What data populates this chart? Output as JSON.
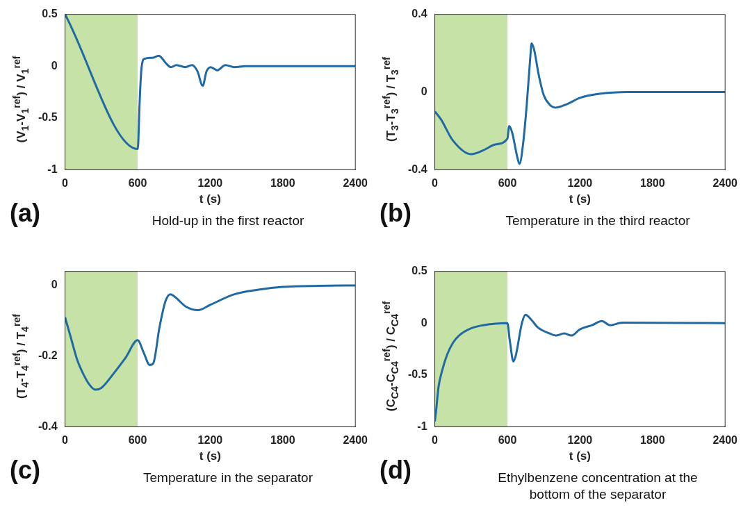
{
  "chart_data": [
    {
      "type": "line",
      "title": "(a)",
      "subtitle": "Hold-up in the first reactor",
      "xlabel": "t (s)",
      "ylabel": "(V$_{1}$-V$_{1}$$^{ref}$) / V$_{1}$$^{ref}$",
      "x": [
        0,
        600,
        605,
        615,
        630,
        645,
        655,
        700,
        720,
        775,
        840,
        875,
        920,
        995,
        1050,
        1095,
        1138,
        1170,
        1205,
        1260,
        1325,
        1400,
        1490,
        2400
      ],
      "series": [
        {
          "color": "#1f6aa5",
          "values": [
            0.5,
            -0.8,
            -0.75,
            -0.4,
            -0.05,
            0.06,
            0.07,
            0.08,
            0.08,
            0.1,
            0.02,
            -0.01,
            0.01,
            -0.01,
            0.01,
            -0.05,
            -0.19,
            -0.05,
            -0.01,
            -0.04,
            0.01,
            -0.01,
            0,
            0
          ]
        }
      ],
      "xlim": [
        0,
        2400
      ],
      "xticks": [
        0,
        600,
        1200,
        1800,
        2400
      ],
      "ylim": [
        -1,
        0.5
      ],
      "yticks": [
        -1,
        -0.5,
        0,
        0.5
      ],
      "bands": [
        {
          "axis": "x",
          "from": 0,
          "to": 600,
          "color": "#c6e2a6"
        }
      ]
    },
    {
      "type": "line",
      "title": "(b)",
      "subtitle": "Temperature in the third reactor",
      "xlabel": "t (s)",
      "ylabel": "(T$_{3}$-T$_{3}$$^{ref}$) / T$_{3}$$^{ref}$",
      "x": [
        0,
        50,
        150,
        300,
        400,
        500,
        600,
        615,
        640,
        680,
        700,
        730,
        760,
        790,
        800,
        820,
        860,
        900,
        950,
        1000,
        1100,
        1200,
        1350,
        1600,
        2400
      ],
      "series": [
        {
          "color": "#1f6aa5",
          "values": [
            -0.1,
            -0.14,
            -0.25,
            -0.32,
            -0.3,
            -0.27,
            -0.24,
            -0.175,
            -0.21,
            -0.33,
            -0.37,
            -0.265,
            -0.065,
            0.185,
            0.25,
            0.22,
            0.085,
            -0.015,
            -0.065,
            -0.08,
            -0.06,
            -0.03,
            -0.01,
            0,
            0
          ]
        }
      ],
      "xlim": [
        0,
        2400
      ],
      "xticks": [
        0,
        600,
        1200,
        1800,
        2400
      ],
      "ylim": [
        -0.4,
        0.4
      ],
      "yticks": [
        -0.4,
        0,
        0.4
      ],
      "bands": [
        {
          "axis": "x",
          "from": 0,
          "to": 600,
          "color": "#c6e2a6"
        }
      ]
    },
    {
      "type": "line",
      "title": "(c)",
      "subtitle": "Temperature in the separator",
      "xlabel": "t (s)",
      "ylabel": "(T$_{4}$-T$_{4}$$^{ref}$) / T$_{4}$$^{ref}$",
      "x": [
        0,
        50,
        100,
        150,
        200,
        250,
        300,
        400,
        500,
        600,
        650,
        700,
        730,
        780,
        830,
        870,
        900,
        1000,
        1100,
        1200,
        1400,
        1600,
        1800,
        2100,
        2400
      ],
      "series": [
        {
          "color": "#1f6aa5",
          "values": [
            -0.09,
            -0.15,
            -0.21,
            -0.25,
            -0.28,
            -0.295,
            -0.29,
            -0.25,
            -0.205,
            -0.155,
            -0.19,
            -0.225,
            -0.22,
            -0.12,
            -0.045,
            -0.025,
            -0.03,
            -0.06,
            -0.07,
            -0.055,
            -0.025,
            -0.012,
            -0.004,
            -0.001,
            0
          ]
        }
      ],
      "xlim": [
        0,
        2400
      ],
      "xticks": [
        0,
        600,
        1200,
        1800,
        2400
      ],
      "ylim": [
        -0.4,
        0.04
      ],
      "yticks": [
        -0.4,
        -0.2,
        0
      ],
      "bands": [
        {
          "axis": "x",
          "from": 0,
          "to": 600,
          "color": "#c6e2a6"
        }
      ]
    },
    {
      "type": "line",
      "title": "(d)",
      "subtitle": "Ethylbenzene concentration at the bottom of the separator",
      "xlabel": "t (s)",
      "ylabel": "(C$_{C4}$-C$_{C4}$$^{ref}$) / C$_{C4}$$^{ref}$",
      "x": [
        0,
        10,
        30,
        60,
        100,
        150,
        200,
        300,
        400,
        500,
        600,
        620,
        650,
        670,
        720,
        750,
        800,
        850,
        950,
        1000,
        1070,
        1130,
        1200,
        1300,
        1380,
        1450,
        1550,
        2400
      ],
      "series": [
        {
          "color": "#1f6aa5",
          "values": [
            -0.95,
            -0.85,
            -0.62,
            -0.46,
            -0.31,
            -0.19,
            -0.12,
            -0.05,
            -0.02,
            -0.005,
            0,
            -0.17,
            -0.37,
            -0.31,
            0,
            0.08,
            0.03,
            -0.04,
            -0.1,
            -0.12,
            -0.1,
            -0.12,
            -0.06,
            -0.02,
            0.02,
            -0.02,
            0.005,
            0
          ]
        }
      ],
      "xlim": [
        0,
        2400
      ],
      "xticks": [
        0,
        600,
        1200,
        1800,
        2400
      ],
      "ylim": [
        -1,
        0.5
      ],
      "yticks": [
        -1,
        -0.5,
        0,
        0.5
      ],
      "bands": [
        {
          "axis": "x",
          "from": 0,
          "to": 600,
          "color": "#c6e2a6"
        }
      ]
    }
  ]
}
